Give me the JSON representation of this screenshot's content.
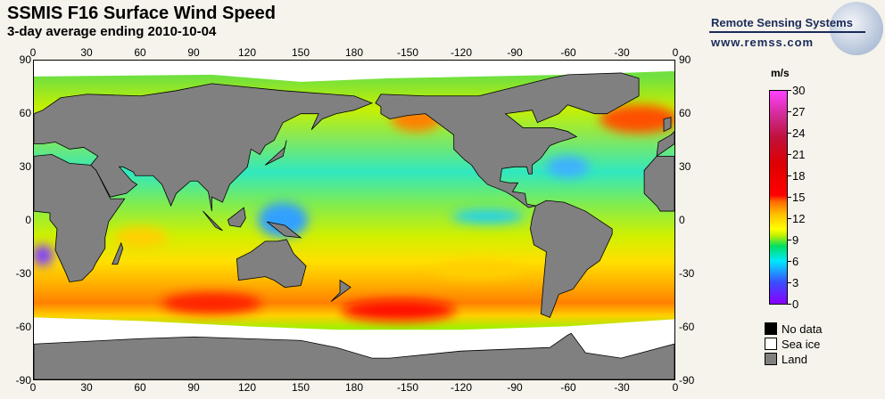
{
  "title": "SSMIS F16 Surface Wind Speed",
  "subtitle": "3-day average ending 2010-10-04",
  "logo": {
    "name": "Remote Sensing Systems",
    "url": "www.remss.com"
  },
  "map": {
    "lon_ticks": [
      "0",
      "30",
      "60",
      "90",
      "120",
      "150",
      "180",
      "-150",
      "-120",
      "-90",
      "-60",
      "-30",
      "0"
    ],
    "lat_ticks": [
      "90",
      "60",
      "30",
      "0",
      "-30",
      "-60",
      "-90"
    ]
  },
  "colorbar": {
    "unit": "m/s",
    "ticks": [
      "30",
      "27",
      "24",
      "21",
      "18",
      "15",
      "12",
      "9",
      "6",
      "3",
      "0"
    ],
    "min": 0,
    "max": 30
  },
  "legend": [
    {
      "label": "No data",
      "color": "#000000"
    },
    {
      "label": "Sea ice",
      "color": "#ffffff"
    },
    {
      "label": "Land",
      "color": "#808080"
    }
  ]
}
